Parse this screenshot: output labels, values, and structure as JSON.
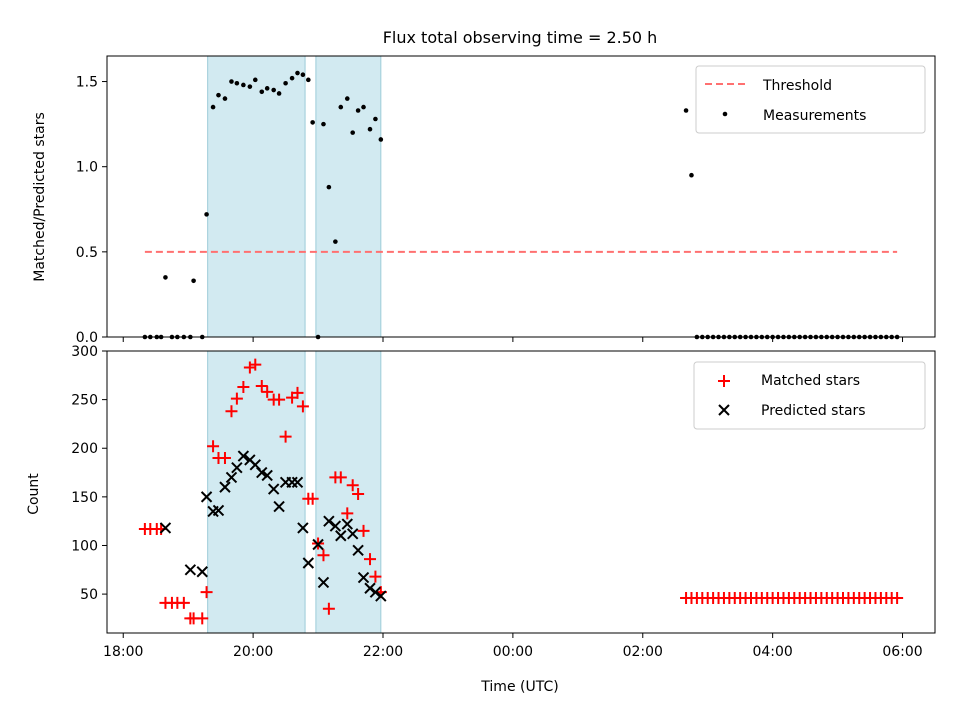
{
  "title": "Flux total observing time = 2.50 h",
  "xlabel": "Time (UTC)",
  "x_ticks": [
    "18:00",
    "20:00",
    "22:00",
    "00:00",
    "02:00",
    "04:00",
    "06:00"
  ],
  "colors": {
    "threshold": "#ff7070",
    "measurements": "#000000",
    "matched": "#ff0000",
    "predicted": "#000000",
    "shade": "#add8e6"
  },
  "chart_data": [
    {
      "type": "scatter",
      "ylabel": "Matched/Predicted stars",
      "ylim": [
        0,
        1.65
      ],
      "y_ticks": [
        "0.0",
        "0.5",
        "1.0",
        "1.5"
      ],
      "xlim": [
        "17:45",
        "06:30"
      ],
      "legend_position": "top-right",
      "shaded_intervals": [
        [
          "19:18",
          "20:48"
        ],
        [
          "20:58",
          "21:58"
        ]
      ],
      "series": [
        {
          "name": "Threshold",
          "kind": "dashed-line",
          "x": [
            "18:20",
            "05:55"
          ],
          "y": [
            0.5,
            0.5
          ]
        },
        {
          "name": "Measurements",
          "kind": "dots",
          "x": [
            "18:20",
            "18:25",
            "18:31",
            "18:35",
            "18:39",
            "18:45",
            "18:50",
            "18:56",
            "19:02",
            "19:05",
            "19:13",
            "19:17",
            "19:23",
            "19:28",
            "19:34",
            "19:40",
            "19:45",
            "19:51",
            "19:57",
            "20:02",
            "20:08",
            "20:13",
            "20:19",
            "20:24",
            "20:30",
            "20:36",
            "20:41",
            "20:46",
            "20:51",
            "20:55",
            "21:00",
            "21:05",
            "21:10",
            "21:16",
            "21:21",
            "21:27",
            "21:32",
            "21:37",
            "21:42",
            "21:48",
            "21:53",
            "21:58",
            "02:40",
            "02:45",
            "02:50",
            "02:55",
            "03:00",
            "03:05",
            "03:10",
            "03:15",
            "03:20",
            "03:25",
            "03:30",
            "03:35",
            "03:40",
            "03:45",
            "03:50",
            "03:55",
            "04:00",
            "04:05",
            "04:10",
            "04:15",
            "04:20",
            "04:25",
            "04:30",
            "04:35",
            "04:40",
            "04:45",
            "04:50",
            "04:55",
            "05:00",
            "05:05",
            "05:10",
            "05:15",
            "05:20",
            "05:25",
            "05:30",
            "05:35",
            "05:40",
            "05:45",
            "05:50",
            "05:55"
          ],
          "y": [
            0,
            0,
            0,
            0,
            0.35,
            0,
            0,
            0,
            0,
            0.33,
            0,
            0.72,
            1.35,
            1.42,
            1.4,
            1.5,
            1.49,
            1.48,
            1.47,
            1.51,
            1.44,
            1.46,
            1.45,
            1.43,
            1.49,
            1.52,
            1.55,
            1.54,
            1.51,
            1.26,
            0,
            1.25,
            0.88,
            0.56,
            1.35,
            1.4,
            1.2,
            1.33,
            1.35,
            1.22,
            1.28,
            1.16,
            1.33,
            0.95,
            0,
            0,
            0,
            0,
            0,
            0,
            0,
            0,
            0,
            0,
            0,
            0,
            0,
            0,
            0,
            0,
            0,
            0,
            0,
            0,
            0,
            0,
            0,
            0,
            0,
            0,
            0,
            0,
            0,
            0,
            0,
            0,
            0,
            0,
            0,
            0,
            0,
            0
          ]
        }
      ]
    },
    {
      "type": "scatter",
      "ylabel": "Count",
      "ylim": [
        10,
        300
      ],
      "y_ticks": [
        "50",
        "100",
        "150",
        "200",
        "250",
        "300"
      ],
      "xlim": [
        "17:45",
        "06:30"
      ],
      "legend_position": "top-right",
      "shaded_intervals": [
        [
          "19:18",
          "20:48"
        ],
        [
          "20:58",
          "21:58"
        ]
      ],
      "series": [
        {
          "name": "Matched stars",
          "kind": "plus",
          "x": [
            "18:20",
            "18:25",
            "18:31",
            "18:35",
            "18:39",
            "18:45",
            "18:50",
            "18:56",
            "19:02",
            "19:05",
            "19:13",
            "19:17",
            "19:23",
            "19:28",
            "19:34",
            "19:40",
            "19:45",
            "19:51",
            "19:57",
            "20:02",
            "20:08",
            "20:13",
            "20:19",
            "20:24",
            "20:30",
            "20:36",
            "20:41",
            "20:46",
            "20:51",
            "20:55",
            "21:00",
            "21:05",
            "21:10",
            "21:16",
            "21:21",
            "21:27",
            "21:32",
            "21:37",
            "21:42",
            "21:48",
            "21:53",
            "21:58",
            "02:40",
            "02:45",
            "02:50",
            "02:55",
            "03:00",
            "03:05",
            "03:10",
            "03:15",
            "03:20",
            "03:25",
            "03:30",
            "03:35",
            "03:40",
            "03:45",
            "03:50",
            "03:55",
            "04:00",
            "04:05",
            "04:10",
            "04:15",
            "04:20",
            "04:25",
            "04:30",
            "04:35",
            "04:40",
            "04:45",
            "04:50",
            "04:55",
            "05:00",
            "05:05",
            "05:10",
            "05:15",
            "05:20",
            "05:25",
            "05:30",
            "05:35",
            "05:40",
            "05:45",
            "05:50",
            "05:55"
          ],
          "y": [
            117,
            117,
            117,
            117,
            41,
            41,
            41,
            41,
            25,
            25,
            25,
            52,
            202,
            190,
            190,
            238,
            251,
            263,
            283,
            286,
            264,
            258,
            250,
            250,
            212,
            252,
            257,
            243,
            148,
            148,
            102,
            90,
            35,
            170,
            170,
            133,
            162,
            153,
            115,
            86,
            68,
            52,
            46,
            46,
            46,
            46,
            46,
            46,
            46,
            46,
            46,
            46,
            46,
            46,
            46,
            46,
            46,
            46,
            46,
            46,
            46,
            46,
            46,
            46,
            46,
            46,
            46,
            46,
            46,
            46,
            46,
            46,
            46,
            46,
            46,
            46,
            46,
            46,
            46,
            46,
            46,
            46
          ]
        },
        {
          "name": "Predicted stars",
          "kind": "x",
          "x": [
            "18:39",
            "19:02",
            "19:13",
            "19:17",
            "19:23",
            "19:28",
            "19:34",
            "19:40",
            "19:45",
            "19:51",
            "19:57",
            "20:02",
            "20:08",
            "20:13",
            "20:19",
            "20:24",
            "20:30",
            "20:36",
            "20:41",
            "20:46",
            "20:51",
            "21:00",
            "21:05",
            "21:10",
            "21:16",
            "21:21",
            "21:27",
            "21:32",
            "21:37",
            "21:42",
            "21:48",
            "21:53",
            "21:58"
          ],
          "y": [
            118,
            75,
            73,
            150,
            135,
            136,
            160,
            170,
            180,
            192,
            188,
            183,
            175,
            172,
            158,
            140,
            165,
            165,
            165,
            118,
            82,
            101,
            62,
            125,
            120,
            110,
            122,
            112,
            95,
            67,
            56,
            52,
            48
          ]
        }
      ]
    }
  ]
}
